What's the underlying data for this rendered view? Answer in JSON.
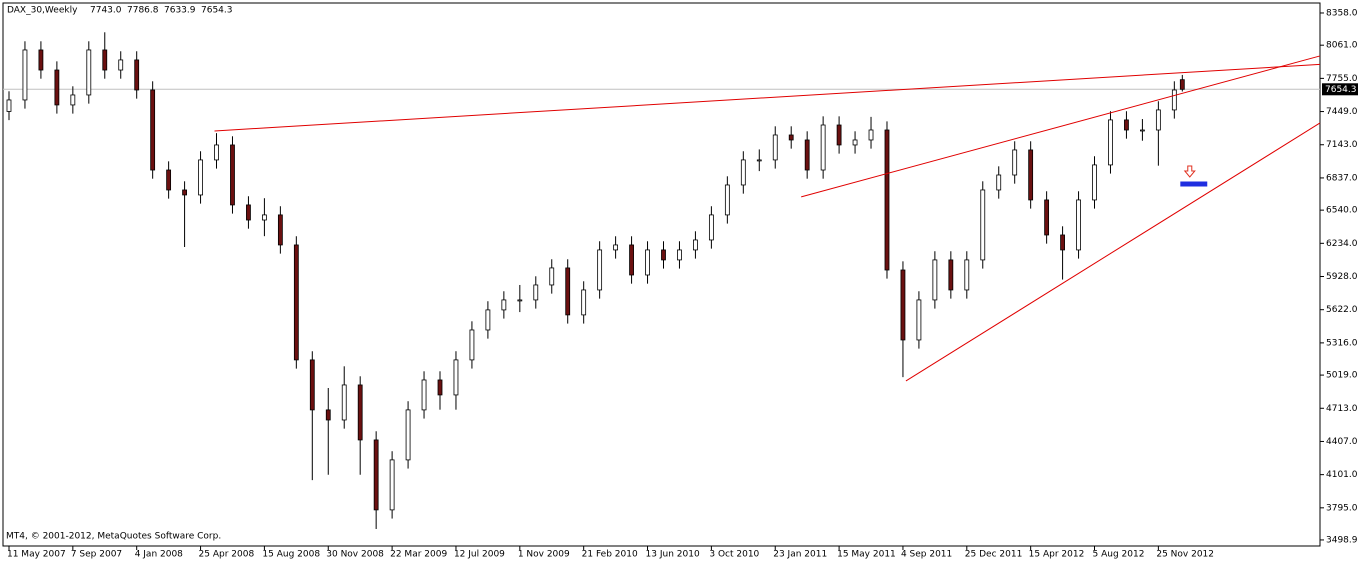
{
  "chart_data": {
    "type": "candlestick",
    "title": "DAX_30,Weekly",
    "ohlc_labels": [
      "7743.0",
      "7786.8",
      "7633.9",
      "7654.3"
    ],
    "footer": "MT4, © 2001-2012, MetaQuotes Software Corp.",
    "x": [
      0,
      4,
      8,
      12,
      16,
      20,
      24,
      28,
      32,
      36,
      40,
      44,
      48,
      52,
      56,
      60,
      64,
      68,
      72,
      76,
      80,
      84,
      88,
      92,
      96,
      100,
      104,
      108,
      112,
      116,
      120,
      124,
      128,
      132,
      136,
      140,
      144,
      148,
      152,
      156,
      160,
      164,
      168,
      172,
      176,
      180,
      184,
      188,
      192,
      196,
      200,
      204,
      208,
      212,
      216,
      220,
      224,
      228,
      232,
      236,
      240,
      244,
      248,
      252,
      256,
      260,
      264,
      268,
      272,
      276,
      280,
      284,
      288,
      292,
      294
    ],
    "open": [
      7450,
      7556,
      8017,
      7832,
      7510,
      7602,
      8017,
      7832,
      7925,
      7648,
      6910,
      6726,
      6680,
      7003,
      7141,
      6588,
      6449,
      6496,
      6219,
      5159,
      4698,
      4605,
      4928,
      4421,
      3776,
      4237,
      4698,
      4974,
      4836,
      5159,
      5435,
      5620,
      5712,
      5712,
      5850,
      6007,
      5574,
      5804,
      6173,
      6219,
      5942,
      6173,
      6081,
      6173,
      6265,
      6496,
      6772,
      7003,
      7003,
      7233,
      7187,
      6910,
      7325,
      7141,
      7187,
      7279,
      5988,
      5343,
      5712,
      6081,
      5804,
      6081,
      6726,
      6864,
      7095,
      6634,
      6311,
      6173,
      6634,
      6957,
      7372,
      7279,
      7279,
      7464,
      7743.0
    ],
    "high": [
      7636,
      8097,
      8097,
      7912,
      7682,
      8097,
      8180,
      8005,
      8005,
      7728,
      6990,
      6806,
      7083,
      7250,
      7221,
      6668,
      6650,
      6576,
      6299,
      5239,
      4900,
      5100,
      5008,
      4501,
      4317,
      4778,
      5054,
      5054,
      5239,
      5515,
      5700,
      5792,
      5850,
      5930,
      6087,
      6087,
      5884,
      6253,
      6299,
      6299,
      6253,
      6253,
      6253,
      6345,
      6576,
      6852,
      7083,
      7100,
      7313,
      7313,
      7267,
      7405,
      7405,
      7267,
      7400,
      7359,
      6068,
      5792,
      6161,
      6161,
      6161,
      6806,
      6944,
      7175,
      7175,
      6714,
      6391,
      6714,
      7037,
      7452,
      7452,
      7380,
      7544,
      7728,
      7786.8
    ],
    "low": [
      7370,
      7476,
      7752,
      7430,
      7430,
      7522,
      7752,
      7752,
      7568,
      6830,
      6646,
      6200,
      6600,
      6923,
      6508,
      6369,
      6300,
      6139,
      5079,
      4050,
      4100,
      4525,
      4100,
      3600,
      3696,
      4157,
      4618,
      4700,
      4700,
      5079,
      5355,
      5540,
      5600,
      5632,
      5770,
      5494,
      5494,
      5724,
      6093,
      5862,
      5862,
      6001,
      6001,
      6093,
      6185,
      6416,
      6692,
      6900,
      6923,
      7107,
      6830,
      6830,
      7061,
      7061,
      7107,
      5908,
      5000,
      5263,
      5632,
      5724,
      5724,
      6001,
      6646,
      6784,
      6554,
      6231,
      5900,
      6093,
      6554,
      6877,
      7199,
      7180,
      6950,
      7384,
      7633.9
    ],
    "close": [
      7556,
      8017,
      7832,
      7510,
      7602,
      8017,
      7832,
      7925,
      7648,
      6910,
      6726,
      6680,
      7003,
      7141,
      6588,
      6449,
      6496,
      6219,
      5159,
      4698,
      4605,
      4928,
      4421,
      3776,
      4237,
      4698,
      4974,
      4836,
      5159,
      5435,
      5620,
      5712,
      5712,
      5850,
      6007,
      5574,
      5804,
      6173,
      6219,
      5942,
      6173,
      6081,
      6173,
      6265,
      6496,
      6772,
      7003,
      7003,
      7233,
      7187,
      6910,
      7325,
      7141,
      7187,
      7279,
      5988,
      5343,
      5712,
      6081,
      5804,
      6081,
      6726,
      6864,
      7095,
      6634,
      6311,
      6173,
      6634,
      6957,
      7372,
      7279,
      7279,
      7464,
      7648,
      7654.3
    ],
    "up_color": "#ffffff",
    "down_color": "#6b1010",
    "current_price": {
      "value": 7654.3,
      "label": "7654.3"
    },
    "xlim": [
      -1.5,
      328.5
    ],
    "ylim": [
      3443,
      8450
    ],
    "xticks": [
      {
        "value": 0,
        "label": "11 May 2007"
      },
      {
        "value": 16,
        "label": "7 Sep 2007"
      },
      {
        "value": 32,
        "label": "4 Jan 2008"
      },
      {
        "value": 48,
        "label": "25 Apr 2008"
      },
      {
        "value": 64,
        "label": "15 Aug 2008"
      },
      {
        "value": 80,
        "label": "30 Nov 2008"
      },
      {
        "value": 96,
        "label": "22 Mar 2009"
      },
      {
        "value": 112,
        "label": "12 Jul 2009"
      },
      {
        "value": 128,
        "label": "1 Nov 2009"
      },
      {
        "value": 144,
        "label": "21 Feb 2010"
      },
      {
        "value": 160,
        "label": "13 Jun 2010"
      },
      {
        "value": 176,
        "label": "3 Oct 2010"
      },
      {
        "value": 192,
        "label": "23 Jan 2011"
      },
      {
        "value": 208,
        "label": "15 May 2011"
      },
      {
        "value": 224,
        "label": "4 Sep 2011"
      },
      {
        "value": 240,
        "label": "25 Dec 2011"
      },
      {
        "value": 256,
        "label": "15 Apr 2012"
      },
      {
        "value": 272,
        "label": "5 Aug 2012"
      },
      {
        "value": 288,
        "label": "25 Nov 2012"
      }
    ],
    "yticks": [
      {
        "value": 8358,
        "label": "8358.0"
      },
      {
        "value": 8061,
        "label": "8061.0"
      },
      {
        "value": 7755,
        "label": "7755.0"
      },
      {
        "value": 7449,
        "label": "7449.0"
      },
      {
        "value": 7143,
        "label": "7143.0"
      },
      {
        "value": 6837,
        "label": "6837.0"
      },
      {
        "value": 6540,
        "label": "6540.0"
      },
      {
        "value": 6234,
        "label": "6234.0"
      },
      {
        "value": 5928,
        "label": "5928.0"
      },
      {
        "value": 5622,
        "label": "5622.0"
      },
      {
        "value": 5316,
        "label": "5316.0"
      },
      {
        "value": 5019,
        "label": "5019.0"
      },
      {
        "value": 4713,
        "label": "4713.0"
      },
      {
        "value": 4407,
        "label": "4407.0"
      },
      {
        "value": 4101,
        "label": "4101.0"
      },
      {
        "value": 3795,
        "label": "3795.0"
      },
      {
        "value": 3498.9,
        "label": "3498.9"
      }
    ],
    "trend_lines": [
      {
        "x": [
          51.5,
          328.5
        ],
        "y": [
          7270,
          7884
        ],
        "color": "#e00000"
      },
      {
        "x": [
          198.5,
          328.5
        ],
        "y": [
          6662,
          7962
        ],
        "color": "#e00000"
      },
      {
        "x": [
          224.75,
          328.5
        ],
        "y": [
          4965,
          7344
        ],
        "color": "#e00000"
      }
    ],
    "marker": {
      "x": [
        293.5,
        300.25
      ],
      "y": 6781,
      "color": "#1f2ee0",
      "arrow_color": "#e03020"
    }
  }
}
